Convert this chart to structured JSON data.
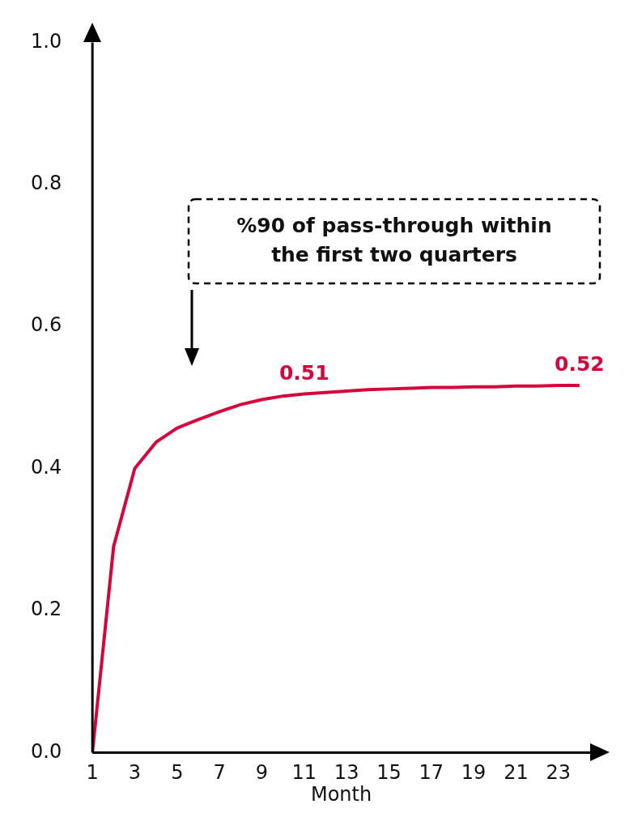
{
  "chart_data": {
    "type": "line",
    "xlabel": "Month",
    "x": [
      1,
      2,
      3,
      4,
      5,
      6,
      7,
      8,
      9,
      10,
      11,
      12,
      13,
      14,
      15,
      16,
      17,
      18,
      19,
      20,
      21,
      22,
      23,
      24
    ],
    "series": [
      {
        "color": "#d5053c",
        "values": [
          0,
          0.29,
          0.4,
          0.437,
          0.457,
          0.469,
          0.48,
          0.49,
          0.497,
          0.502,
          0.505,
          0.507,
          0.509,
          0.511,
          0.512,
          0.513,
          0.514,
          0.514,
          0.515,
          0.515,
          0.516,
          0.516,
          0.517,
          0.517
        ]
      }
    ],
    "xlim": [
      1,
      24.5
    ],
    "xticks": [
      1,
      3,
      5,
      7,
      9,
      11,
      13,
      15,
      17,
      19,
      21,
      23
    ],
    "ylim": [
      0,
      1
    ],
    "yticks": [
      {
        "value": 0,
        "label": "0.0"
      },
      0.2,
      0.4,
      0.6,
      0.8,
      {
        "value": 1,
        "label": "1.0"
      }
    ],
    "grid": false,
    "legend": false,
    "marker": "none",
    "line_style": "solid",
    "annotations": [
      "%90 of pass-through within the first two quarters",
      {
        "text": "0.51",
        "x": 11,
        "y": 0.505
      },
      {
        "text": "0.52",
        "x": 24,
        "y": 0.517
      }
    ]
  }
}
